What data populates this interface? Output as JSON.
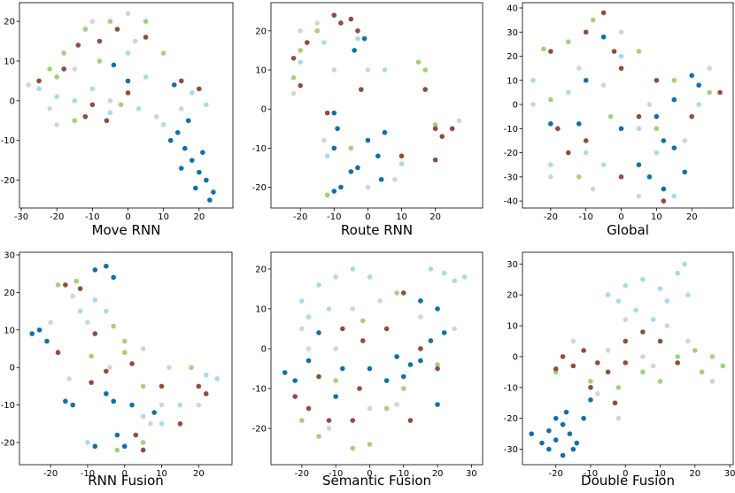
{
  "chart_data": [
    {
      "type": "scatter",
      "title": "Move RNN",
      "xlim": [
        -30.5,
        29.5
      ],
      "ylim": [
        -27,
        24.7
      ],
      "xticks": [
        -30,
        -20,
        -10,
        0,
        10,
        20
      ],
      "yticks": [
        -20,
        -10,
        0,
        10,
        20
      ],
      "series": [
        {
          "color": "#d4d4d4",
          "x": [
            -28,
            -22,
            -15,
            -5,
            0,
            8,
            -10,
            15,
            2,
            -20
          ],
          "y": [
            4,
            -2,
            8,
            0,
            22,
            -4,
            20,
            -2,
            15,
            -6
          ]
        },
        {
          "color": "#a8dbe8",
          "x": [
            -25,
            -20,
            -15,
            -5,
            5,
            3,
            10,
            -10,
            18,
            0,
            22
          ],
          "y": [
            3,
            1,
            0,
            -3,
            6,
            -2,
            -6,
            3,
            2,
            12,
            -1
          ]
        },
        {
          "color": "#a3d17a",
          "x": [
            -22,
            -18,
            -12,
            -5,
            -8,
            5,
            -15,
            -20,
            10,
            -2
          ],
          "y": [
            8,
            12,
            18,
            20,
            10,
            20,
            -5,
            6,
            12,
            -1
          ]
        },
        {
          "color": "#8f4d3c",
          "x": [
            -25,
            -18,
            -12,
            -6,
            -14,
            -8,
            5,
            15,
            20,
            0,
            -10,
            -3
          ],
          "y": [
            5,
            8,
            -4,
            -5,
            14,
            15,
            16,
            5,
            3,
            2,
            -1,
            18
          ]
        },
        {
          "color": "#1170aa",
          "x": [
            14,
            16,
            18,
            20,
            22,
            24,
            12,
            19,
            21,
            17,
            23,
            15,
            0,
            -4,
            13
          ],
          "y": [
            -8,
            -12,
            -15,
            -18,
            -20,
            -23,
            -10,
            -22,
            -13,
            -5,
            -25,
            -17,
            5,
            9,
            4
          ]
        }
      ]
    },
    {
      "type": "scatter",
      "title": "Route RNN",
      "xlim": [
        -28.7,
        34
      ],
      "ylim": [
        -25.3,
        27.2
      ],
      "xticks": [
        -20,
        -10,
        0,
        10,
        20
      ],
      "yticks": [
        -20,
        -10,
        0,
        10,
        20
      ],
      "series": [
        {
          "color": "#d4d4d4",
          "x": [
            -20,
            -15,
            -22,
            0,
            8,
            -13,
            27,
            0,
            -10
          ],
          "y": [
            20,
            22,
            4,
            10,
            -18,
            -8,
            -3,
            -20,
            10
          ]
        },
        {
          "color": "#a8dbe8",
          "x": [
            -3,
            -13,
            -20,
            -12,
            10,
            5
          ],
          "y": [
            18,
            17,
            12,
            -12,
            -14,
            10
          ]
        },
        {
          "color": "#a3d17a",
          "x": [
            -20,
            -22,
            -15,
            15,
            17,
            -5,
            25,
            -12,
            20
          ],
          "y": [
            15,
            8,
            20,
            12,
            10,
            -10,
            -5,
            -22,
            -4
          ]
        },
        {
          "color": "#8f4d3c",
          "x": [
            -22,
            -18,
            -10,
            -8,
            -5,
            -3,
            -12,
            17,
            20,
            25,
            22,
            20,
            -20,
            -2,
            10
          ],
          "y": [
            13,
            17,
            24,
            22,
            23,
            20,
            -1,
            5,
            -5,
            -5,
            -7,
            -13,
            6,
            5,
            -12
          ]
        },
        {
          "color": "#1170aa",
          "x": [
            -10,
            -9,
            -10,
            -8,
            -10,
            0,
            3,
            -3,
            5,
            -5,
            -4,
            -1,
            4
          ],
          "y": [
            -1,
            -5,
            -10,
            -20,
            -21,
            -8,
            -12,
            -15,
            -6,
            -16,
            15,
            18,
            -18
          ]
        }
      ]
    },
    {
      "type": "scatter",
      "title": "Global",
      "xlim": [
        -28,
        31.75
      ],
      "ylim": [
        -42.9,
        42.2
      ],
      "xticks": [
        -20,
        -10,
        0,
        10,
        20
      ],
      "yticks": [
        -40,
        -30,
        -20,
        -10,
        0,
        10,
        20,
        30,
        40
      ],
      "series": [
        {
          "color": "#d4d4d4",
          "x": [
            -25,
            -12,
            0,
            -5,
            8,
            18,
            -8,
            5,
            25,
            -20
          ],
          "y": [
            0,
            15,
            30,
            8,
            0,
            -15,
            -35,
            -38,
            15,
            -30
          ]
        },
        {
          "color": "#a8dbe8",
          "x": [
            -25,
            -15,
            -10,
            -5,
            5,
            10,
            15,
            22,
            0,
            -20
          ],
          "y": [
            10,
            5,
            -20,
            -25,
            -10,
            -20,
            -38,
            0,
            20,
            -25
          ]
        },
        {
          "color": "#a3d17a",
          "x": [
            -22,
            -15,
            -8,
            5,
            15,
            -3,
            10,
            -20,
            25,
            -12
          ],
          "y": [
            23,
            26,
            35,
            22,
            10,
            -5,
            -10,
            2,
            5,
            -30
          ]
        },
        {
          "color": "#8f4d3c",
          "x": [
            -20,
            -10,
            -5,
            -2,
            0,
            -10,
            -18,
            5,
            -15,
            10,
            20,
            28,
            0,
            12
          ],
          "y": [
            22,
            30,
            38,
            22,
            15,
            -15,
            -10,
            -5,
            -20,
            10,
            -5,
            5,
            -30,
            -40
          ]
        },
        {
          "color": "#1170aa",
          "x": [
            20,
            22,
            15,
            10,
            12,
            5,
            8,
            12,
            15,
            -5,
            -10,
            -12,
            -20,
            0,
            18
          ],
          "y": [
            12,
            8,
            2,
            -5,
            -15,
            -25,
            -30,
            -35,
            -18,
            28,
            10,
            -8,
            -8,
            -10,
            -28
          ]
        }
      ]
    },
    {
      "type": "scatter",
      "title": "RNN Fusion",
      "xlim": [
        -28.4,
        29
      ],
      "ylim": [
        -25.9,
        30.7
      ],
      "xticks": [
        -20,
        -10,
        0,
        10,
        20
      ],
      "yticks": [
        -20,
        -10,
        0,
        10,
        20,
        30
      ],
      "series": [
        {
          "color": "#d4d4d4",
          "x": [
            -14,
            -10,
            -20,
            -4,
            5,
            10,
            12,
            -15,
            7,
            20
          ],
          "y": [
            19,
            12,
            12,
            0,
            5,
            -10,
            0,
            -3,
            -15,
            -10
          ]
        },
        {
          "color": "#a8dbe8",
          "x": [
            -8,
            -5,
            -12,
            10,
            15,
            22,
            25,
            -10,
            5
          ],
          "y": [
            18,
            15,
            15,
            -15,
            -10,
            -2,
            -3,
            -20,
            -13
          ]
        },
        {
          "color": "#a3d17a",
          "x": [
            -18,
            -13,
            -9,
            -3,
            0,
            5,
            18,
            -2,
            5,
            0
          ],
          "y": [
            22,
            23,
            3,
            11,
            4,
            -5,
            0,
            -22,
            -20,
            7
          ]
        },
        {
          "color": "#8f4d3c",
          "x": [
            -16,
            -12,
            -18,
            -8,
            -5,
            2,
            10,
            20,
            22,
            15,
            5,
            3,
            -9
          ],
          "y": [
            22,
            21,
            4,
            9,
            -1,
            1,
            -5,
            -5,
            -7,
            -15,
            -22,
            -18,
            -4
          ]
        },
        {
          "color": "#1170aa",
          "x": [
            -25,
            -23,
            -21,
            -8,
            -5,
            -3,
            -16,
            -14,
            -5,
            -3,
            2,
            8,
            -2,
            -8,
            0
          ],
          "y": [
            9,
            10,
            7,
            26,
            27,
            24,
            -9,
            -10,
            -7,
            -9,
            -10,
            -12,
            -18,
            -21,
            -21
          ]
        }
      ]
    },
    {
      "type": "scatter",
      "title": "Semantic Fusion",
      "xlim": [
        -29.1,
        33.3
      ],
      "ylim": [
        -29.1,
        24.2
      ],
      "xticks": [
        -20,
        -10,
        0,
        10,
        20,
        30
      ],
      "yticks": [
        -20,
        -10,
        0,
        10,
        20
      ],
      "series": [
        {
          "color": "#d4d4d4",
          "x": [
            -18,
            -10,
            -5,
            3,
            8,
            -12,
            15,
            25,
            0,
            -20
          ],
          "y": [
            0,
            0,
            10,
            12,
            -14,
            -20,
            8,
            5,
            -15,
            5
          ]
        },
        {
          "color": "#a8dbe8",
          "x": [
            -20,
            -18,
            -15,
            -10,
            -5,
            0,
            18,
            22,
            25,
            28,
            -12
          ],
          "y": [
            12,
            8,
            16,
            18,
            20,
            18,
            20,
            19,
            17,
            18,
            10
          ]
        },
        {
          "color": "#a3d17a",
          "x": [
            -20,
            -15,
            -5,
            0,
            5,
            10,
            15,
            -10,
            -2,
            8,
            20
          ],
          "y": [
            -18,
            -22,
            -25,
            -24,
            -15,
            -10,
            12,
            -8,
            7,
            14,
            -4
          ]
        },
        {
          "color": "#8f4d3c",
          "x": [
            -22,
            -18,
            -12,
            -5,
            -8,
            -2,
            5,
            10,
            15,
            -15,
            12,
            20,
            -3
          ],
          "y": [
            -12,
            -15,
            -18,
            -18,
            5,
            2,
            5,
            14,
            0,
            -7,
            -18,
            -5,
            -10
          ]
        },
        {
          "color": "#1170aa",
          "x": [
            -25,
            -22,
            -18,
            -15,
            -8,
            0,
            5,
            8,
            12,
            15,
            18,
            22,
            20,
            15,
            10,
            20,
            -10
          ],
          "y": [
            -6,
            -8,
            -3,
            4,
            -5,
            -5,
            -8,
            -2,
            -4,
            -3,
            2,
            4,
            10,
            12,
            -7,
            -14,
            -12
          ]
        }
      ]
    },
    {
      "type": "scatter",
      "title": "Double Fusion",
      "xlim": [
        -29.6,
        31
      ],
      "ylim": [
        -35,
        33.8
      ],
      "xticks": [
        -20,
        -10,
        0,
        10,
        20,
        30
      ],
      "yticks": [
        -30,
        -20,
        -10,
        0,
        10,
        20,
        30
      ],
      "series": [
        {
          "color": "#d4d4d4",
          "x": [
            -15,
            -5,
            0,
            8,
            12,
            18,
            -8,
            -2,
            25,
            5
          ],
          "y": [
            5,
            2,
            12,
            -3,
            10,
            5,
            -12,
            -20,
            -8,
            0
          ]
        },
        {
          "color": "#a8dbe8",
          "x": [
            -5,
            0,
            5,
            10,
            15,
            17,
            12,
            3,
            -2,
            8,
            18
          ],
          "y": [
            20,
            23,
            25,
            22,
            27,
            30,
            18,
            15,
            18,
            12,
            20
          ]
        },
        {
          "color": "#a3d17a",
          "x": [
            -20,
            -10,
            -2,
            5,
            10,
            20,
            25,
            28,
            22,
            15,
            -12
          ],
          "y": [
            -5,
            -8,
            -10,
            -5,
            -8,
            2,
            0,
            -3,
            -5,
            0,
            -20
          ]
        },
        {
          "color": "#8f4d3c",
          "x": [
            -18,
            -15,
            -12,
            -8,
            -5,
            0,
            5,
            10,
            15,
            -10,
            -20,
            -3,
            0
          ],
          "y": [
            0,
            -3,
            2,
            -2,
            -5,
            5,
            8,
            5,
            -2,
            -10,
            -4,
            -15,
            -2
          ]
        },
        {
          "color": "#1170aa",
          "x": [
            -27,
            -24,
            -22,
            -20,
            -18,
            -16,
            -14,
            -12,
            -10,
            -20,
            -18,
            -15,
            -17,
            -22
          ],
          "y": [
            -25,
            -28,
            -30,
            -27,
            -32,
            -25,
            -28,
            -20,
            -14,
            -20,
            -22,
            -30,
            -18,
            -24
          ]
        }
      ]
    }
  ]
}
